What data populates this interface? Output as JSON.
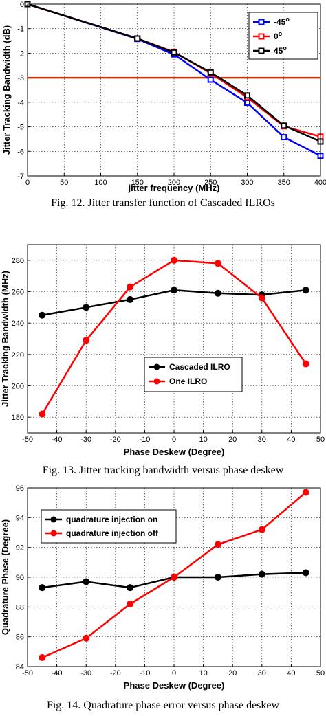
{
  "chart_data": [
    {
      "type": "line",
      "caption": "Fig. 12.  Jitter transfer function of Cascaded ILROs",
      "xlabel": "jitter frequency (MHz)",
      "ylabel": "Jitter Tracking Bandwidth (dB)",
      "xlim": [
        0,
        400
      ],
      "ylim": [
        -7,
        0
      ],
      "xticks": [
        "0",
        "50",
        "100",
        "150",
        "200",
        "250",
        "300",
        "350",
        "400"
      ],
      "yticks": [
        "0",
        "-1",
        "-2",
        "-3",
        "-4",
        "-5",
        "-6",
        "-7"
      ],
      "grid": true,
      "legend_position": "top-right",
      "x": [
        0,
        150,
        200,
        250,
        300,
        350,
        400
      ],
      "series": [
        {
          "name": "-45",
          "name_sup": "o",
          "color": "#0000ff",
          "marker": "square",
          "values": [
            0,
            -1.42,
            -2.05,
            -3.08,
            -4.02,
            -5.42,
            -6.18
          ]
        },
        {
          "name": "0",
          "name_sup": "o",
          "color": "#ff0000",
          "marker": "square",
          "values": [
            0,
            -1.4,
            -1.95,
            -2.82,
            -3.8,
            -4.98,
            -5.4
          ]
        },
        {
          "name": "45",
          "name_sup": "o",
          "color": "#000000",
          "marker": "square",
          "values": [
            0,
            -1.4,
            -1.97,
            -2.78,
            -3.72,
            -4.95,
            -5.6
          ]
        }
      ],
      "reference_line": {
        "y": -3,
        "color": "#cc3300"
      }
    },
    {
      "type": "line",
      "caption": "Fig. 13. Jitter tracking bandwidth versus phase deskew",
      "xlabel": "Phase Deskew (Degree)",
      "ylabel": "Jitter Tracking Bandwidth (MHz)",
      "xlim": [
        -50,
        50
      ],
      "ylim": [
        170,
        290
      ],
      "xticks": [
        "-50",
        "-40",
        "-30",
        "-20",
        "-10",
        "0",
        "10",
        "20",
        "30",
        "40",
        "50"
      ],
      "yticks": [
        "180",
        "200",
        "220",
        "240",
        "260",
        "280"
      ],
      "grid": true,
      "legend_position": "lower-center",
      "x": [
        -45,
        -30,
        -15,
        0,
        15,
        30,
        45
      ],
      "series": [
        {
          "name": "Cascaded ILRO",
          "color": "#000000",
          "marker": "circle",
          "values": [
            245,
            250,
            255,
            261,
            259,
            258,
            261
          ]
        },
        {
          "name": "One ILRO",
          "color": "#ff0000",
          "marker": "circle",
          "values": [
            182,
            229,
            263,
            280,
            278,
            256,
            214
          ]
        }
      ]
    },
    {
      "type": "line",
      "caption": "Fig. 14. Quadrature phase error versus phase deskew",
      "xlabel": "Phase Deskew (Degree)",
      "ylabel": "Quadrature Phase (Degree)",
      "xlim": [
        -50,
        50
      ],
      "ylim": [
        84,
        96
      ],
      "xticks": [
        "-50",
        "-40",
        "-30",
        "-20",
        "-10",
        "0",
        "10",
        "20",
        "30",
        "40",
        "50"
      ],
      "yticks": [
        "84",
        "86",
        "88",
        "90",
        "92",
        "94",
        "96"
      ],
      "grid": true,
      "legend_position": "top-left",
      "x": [
        -45,
        -30,
        -15,
        0,
        15,
        30,
        45
      ],
      "series": [
        {
          "name": "quadrature injection on",
          "color": "#000000",
          "marker": "circle",
          "values": [
            89.3,
            89.7,
            89.3,
            90.0,
            90.0,
            90.2,
            90.3
          ]
        },
        {
          "name": "quadrature injection off",
          "color": "#ff0000",
          "marker": "circle",
          "values": [
            84.6,
            85.9,
            88.2,
            90.0,
            92.2,
            93.2,
            95.7
          ]
        }
      ]
    }
  ]
}
